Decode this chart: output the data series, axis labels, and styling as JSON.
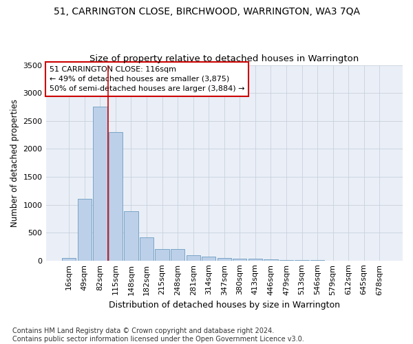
{
  "title": "51, CARRINGTON CLOSE, BIRCHWOOD, WARRINGTON, WA3 7QA",
  "subtitle": "Size of property relative to detached houses in Warrington",
  "xlabel": "Distribution of detached houses by size in Warrington",
  "ylabel": "Number of detached properties",
  "categories": [
    "16sqm",
    "49sqm",
    "82sqm",
    "115sqm",
    "148sqm",
    "182sqm",
    "215sqm",
    "248sqm",
    "281sqm",
    "314sqm",
    "347sqm",
    "380sqm",
    "413sqm",
    "446sqm",
    "479sqm",
    "513sqm",
    "546sqm",
    "579sqm",
    "612sqm",
    "645sqm",
    "678sqm"
  ],
  "values": [
    50,
    1100,
    2750,
    2300,
    880,
    420,
    200,
    200,
    95,
    65,
    50,
    35,
    30,
    20,
    8,
    5,
    3,
    2,
    1,
    1,
    0
  ],
  "bar_color": "#bdd0e9",
  "bar_edge_color": "#6a9cc0",
  "vline_color": "#cc0000",
  "annotation_text": "51 CARRINGTON CLOSE: 116sqm\n← 49% of detached houses are smaller (3,875)\n50% of semi-detached houses are larger (3,884) →",
  "annotation_box_color": "#ffffff",
  "annotation_box_edge": "#cc0000",
  "ylim": [
    0,
    3500
  ],
  "yticks": [
    0,
    500,
    1000,
    1500,
    2000,
    2500,
    3000,
    3500
  ],
  "grid_color": "#c8d0dc",
  "background_color": "#eaeff7",
  "footer": "Contains HM Land Registry data © Crown copyright and database right 2024.\nContains public sector information licensed under the Open Government Licence v3.0.",
  "title_fontsize": 10,
  "subtitle_fontsize": 9.5,
  "xlabel_fontsize": 9,
  "ylabel_fontsize": 8.5,
  "tick_fontsize": 8,
  "annotation_fontsize": 8,
  "footer_fontsize": 7
}
